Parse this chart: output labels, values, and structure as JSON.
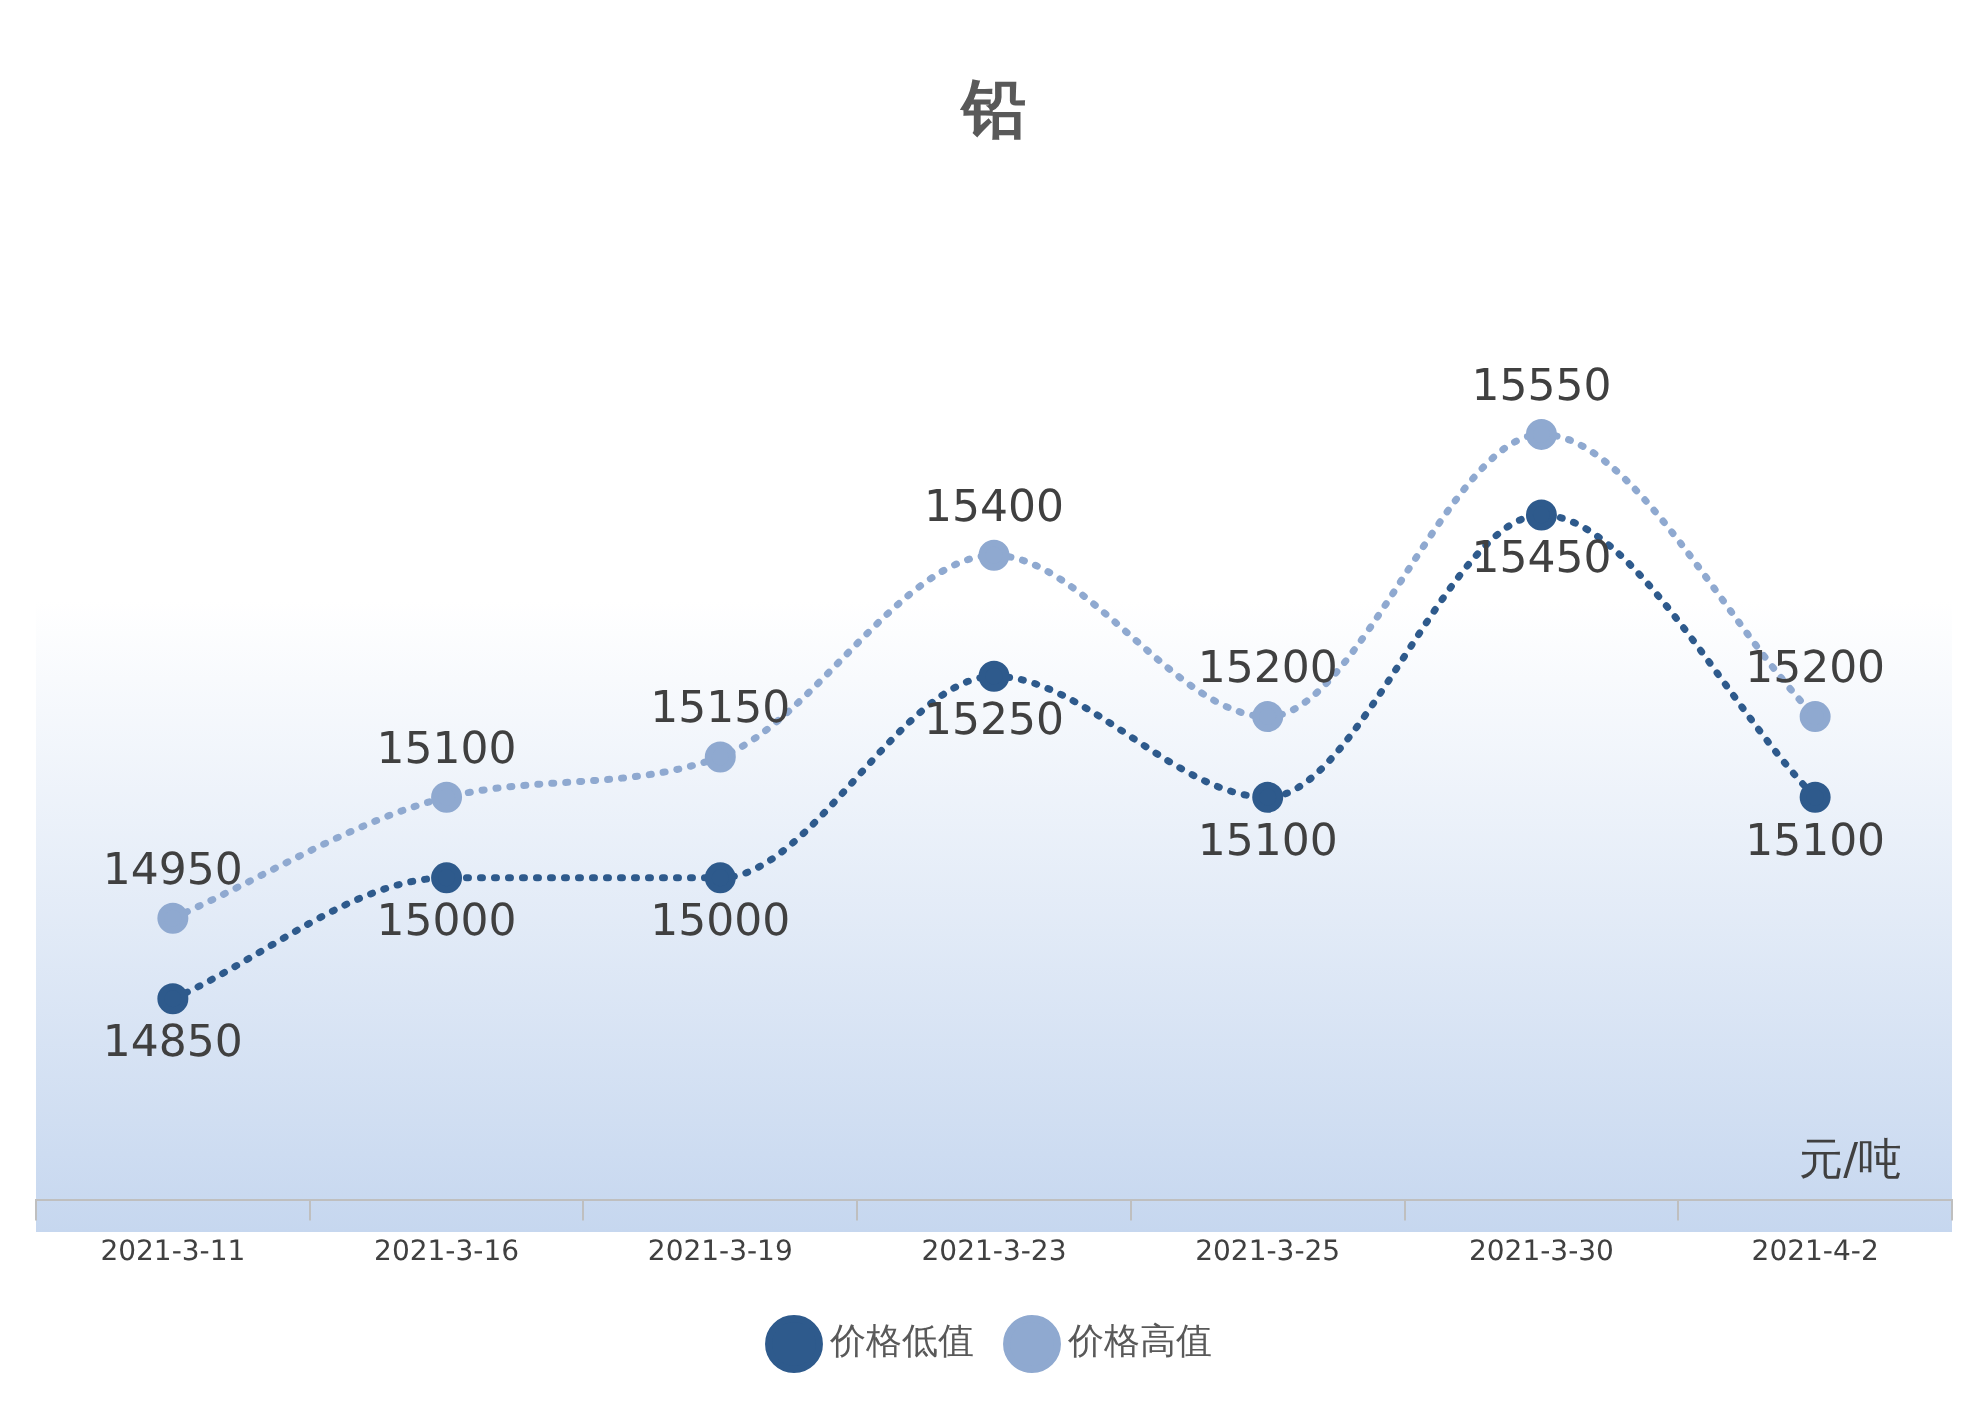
{
  "chart_data": {
    "type": "line",
    "title": "铅",
    "categories": [
      "2021-3-11",
      "2021-3-16",
      "2021-3-19",
      "2021-3-23",
      "2021-3-25",
      "2021-3-30",
      "2021-4-2"
    ],
    "series": [
      {
        "name": "价格低值",
        "color": "#2e5a8c",
        "values": [
          14850,
          15000,
          15000,
          15250,
          15100,
          15450,
          15100
        ]
      },
      {
        "name": "价格高值",
        "color": "#8fa9d0",
        "values": [
          14950,
          15100,
          15150,
          15400,
          15200,
          15550,
          15200
        ]
      }
    ],
    "annotations": [
      "元/吨"
    ],
    "data_labels": true,
    "legend": "bottom",
    "marker": "circle",
    "line_style": "dotted",
    "grid": false
  }
}
